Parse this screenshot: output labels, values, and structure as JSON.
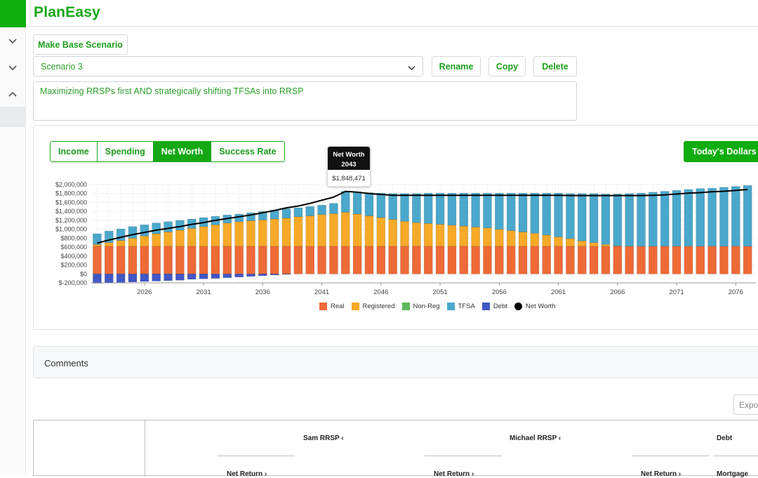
{
  "app": {
    "name": "PlanEasy"
  },
  "toolbar": {
    "make_base": "Make Base Scenario",
    "rename": "Rename",
    "copy": "Copy",
    "delete": "Delete"
  },
  "scenario": {
    "selected": "Scenario 3",
    "description": "Maximizing RRSPs first AND strategically shifting TFSAs into RRSP"
  },
  "tabs": [
    {
      "label": "Income"
    },
    {
      "label": "Spending"
    },
    {
      "label": "Net Worth"
    },
    {
      "label": "Success Rate"
    }
  ],
  "today_dollars": "Today's Dollars",
  "tooltip": {
    "title": "Net Worth",
    "year": "2043",
    "value": "$1,848,471"
  },
  "comments": {
    "title": "Comments"
  },
  "export": {
    "placeholder": "Expor"
  },
  "table": {
    "headers": [
      "Sam RRSP",
      "Michael RRSP",
      "Debt"
    ],
    "subheaders": [
      "Net Return",
      "Net Return",
      "Net Return",
      "Mortgage"
    ]
  },
  "colors": {
    "real": "#ee6a36",
    "registered": "#f7a928",
    "nonreg": "#5db85d",
    "tfsa": "#4aa8cc",
    "debt": "#4157c4",
    "networth": "#000000",
    "accent": "#16a716"
  },
  "chart_data": {
    "type": "bar",
    "stacked": true,
    "x": [
      2022,
      2023,
      2024,
      2025,
      2026,
      2027,
      2028,
      2029,
      2030,
      2031,
      2032,
      2033,
      2034,
      2035,
      2036,
      2037,
      2038,
      2039,
      2040,
      2041,
      2042,
      2043,
      2044,
      2045,
      2046,
      2047,
      2048,
      2049,
      2050,
      2051,
      2052,
      2053,
      2054,
      2055,
      2056,
      2057,
      2058,
      2059,
      2060,
      2061,
      2062,
      2063,
      2064,
      2065,
      2066,
      2067,
      2068,
      2069,
      2070,
      2071,
      2072,
      2073,
      2074,
      2075,
      2076,
      2077
    ],
    "xticks": [
      "2026",
      "2031",
      "2036",
      "2041",
      "2046",
      "2051",
      "2056",
      "2061",
      "2066",
      "2071",
      "2076"
    ],
    "yticks": [
      "$-200,000",
      "$0",
      "$200,000",
      "$400,000",
      "$600,000",
      "$800,000",
      "$1,000,000",
      "$1,200,000",
      "$1,400,000",
      "$1,600,000",
      "$1,800,000",
      "$2,000,000"
    ],
    "ylim": [
      -200000,
      2000000
    ],
    "legend": [
      "Real",
      "Registered",
      "Non-Reg",
      "TFSA",
      "Debt",
      "Net Worth"
    ],
    "legend_position": "bottom",
    "series": [
      {
        "name": "Real",
        "values": [
          620000,
          620000,
          620000,
          620000,
          620000,
          620000,
          620000,
          620000,
          620000,
          620000,
          620000,
          620000,
          620000,
          620000,
          620000,
          620000,
          620000,
          620000,
          620000,
          620000,
          620000,
          620000,
          620000,
          620000,
          620000,
          620000,
          620000,
          620000,
          620000,
          620000,
          620000,
          620000,
          620000,
          620000,
          620000,
          620000,
          620000,
          620000,
          620000,
          620000,
          620000,
          620000,
          620000,
          620000,
          620000,
          620000,
          620000,
          620000,
          620000,
          620000,
          620000,
          620000,
          620000,
          620000,
          620000,
          620000
        ]
      },
      {
        "name": "Registered",
        "values": [
          40000,
          80000,
          130000,
          180000,
          230000,
          280000,
          320000,
          360000,
          400000,
          440000,
          480000,
          520000,
          550000,
          570000,
          590000,
          610000,
          630000,
          660000,
          680000,
          710000,
          730000,
          760000,
          720000,
          680000,
          640000,
          600000,
          560000,
          530000,
          510000,
          490000,
          470000,
          450000,
          430000,
          410000,
          380000,
          350000,
          320000,
          290000,
          250000,
          210000,
          170000,
          120000,
          80000,
          40000,
          10000,
          0,
          0,
          0,
          0,
          0,
          0,
          0,
          0,
          0,
          0,
          0
        ]
      },
      {
        "name": "Non-Reg",
        "values": [
          0,
          0,
          0,
          0,
          0,
          0,
          0,
          0,
          0,
          0,
          0,
          0,
          0,
          0,
          0,
          0,
          0,
          0,
          0,
          0,
          0,
          0,
          0,
          0,
          0,
          0,
          0,
          0,
          0,
          0,
          0,
          0,
          0,
          0,
          0,
          0,
          0,
          0,
          0,
          0,
          0,
          0,
          0,
          0,
          0,
          0,
          0,
          0,
          0,
          0,
          0,
          0,
          0,
          0,
          0,
          0
        ]
      },
      {
        "name": "TFSA",
        "values": [
          240000,
          260000,
          260000,
          260000,
          250000,
          240000,
          230000,
          220000,
          210000,
          200000,
          190000,
          180000,
          170000,
          180000,
          190000,
          200000,
          210000,
          200000,
          210000,
          210000,
          230000,
          470000,
          500000,
          520000,
          550000,
          580000,
          620000,
          650000,
          680000,
          700000,
          720000,
          740000,
          760000,
          780000,
          810000,
          840000,
          870000,
          900000,
          940000,
          980000,
          1010000,
          1060000,
          1100000,
          1130000,
          1160000,
          1180000,
          1190000,
          1210000,
          1230000,
          1250000,
          1270000,
          1290000,
          1300000,
          1320000,
          1340000,
          1360000
        ]
      },
      {
        "name": "Debt",
        "values": [
          -210000,
          -200000,
          -190000,
          -180000,
          -170000,
          -160000,
          -150000,
          -140000,
          -120000,
          -110000,
          -100000,
          -85000,
          -70000,
          -55000,
          -40000,
          -25000,
          -10000,
          0,
          0,
          0,
          0,
          0,
          0,
          0,
          0,
          0,
          0,
          0,
          0,
          0,
          0,
          0,
          0,
          0,
          0,
          0,
          0,
          0,
          0,
          0,
          0,
          0,
          0,
          0,
          0,
          0,
          0,
          0,
          0,
          0,
          0,
          0,
          0,
          0,
          0,
          0
        ]
      }
    ],
    "line": {
      "name": "Net Worth",
      "values": [
        690000,
        760000,
        820000,
        880000,
        930000,
        980000,
        1020000,
        1060000,
        1110000,
        1150000,
        1200000,
        1240000,
        1280000,
        1320000,
        1370000,
        1420000,
        1480000,
        1520000,
        1580000,
        1650000,
        1720000,
        1848471,
        1830000,
        1800000,
        1780000,
        1760000,
        1760000,
        1760000,
        1760000,
        1760000,
        1760000,
        1760000,
        1760000,
        1760000,
        1760000,
        1760000,
        1760000,
        1760000,
        1760000,
        1760000,
        1755000,
        1755000,
        1755000,
        1755000,
        1755000,
        1755000,
        1755000,
        1760000,
        1770000,
        1790000,
        1810000,
        1820000,
        1840000,
        1850000,
        1870000,
        1890000
      ]
    }
  }
}
